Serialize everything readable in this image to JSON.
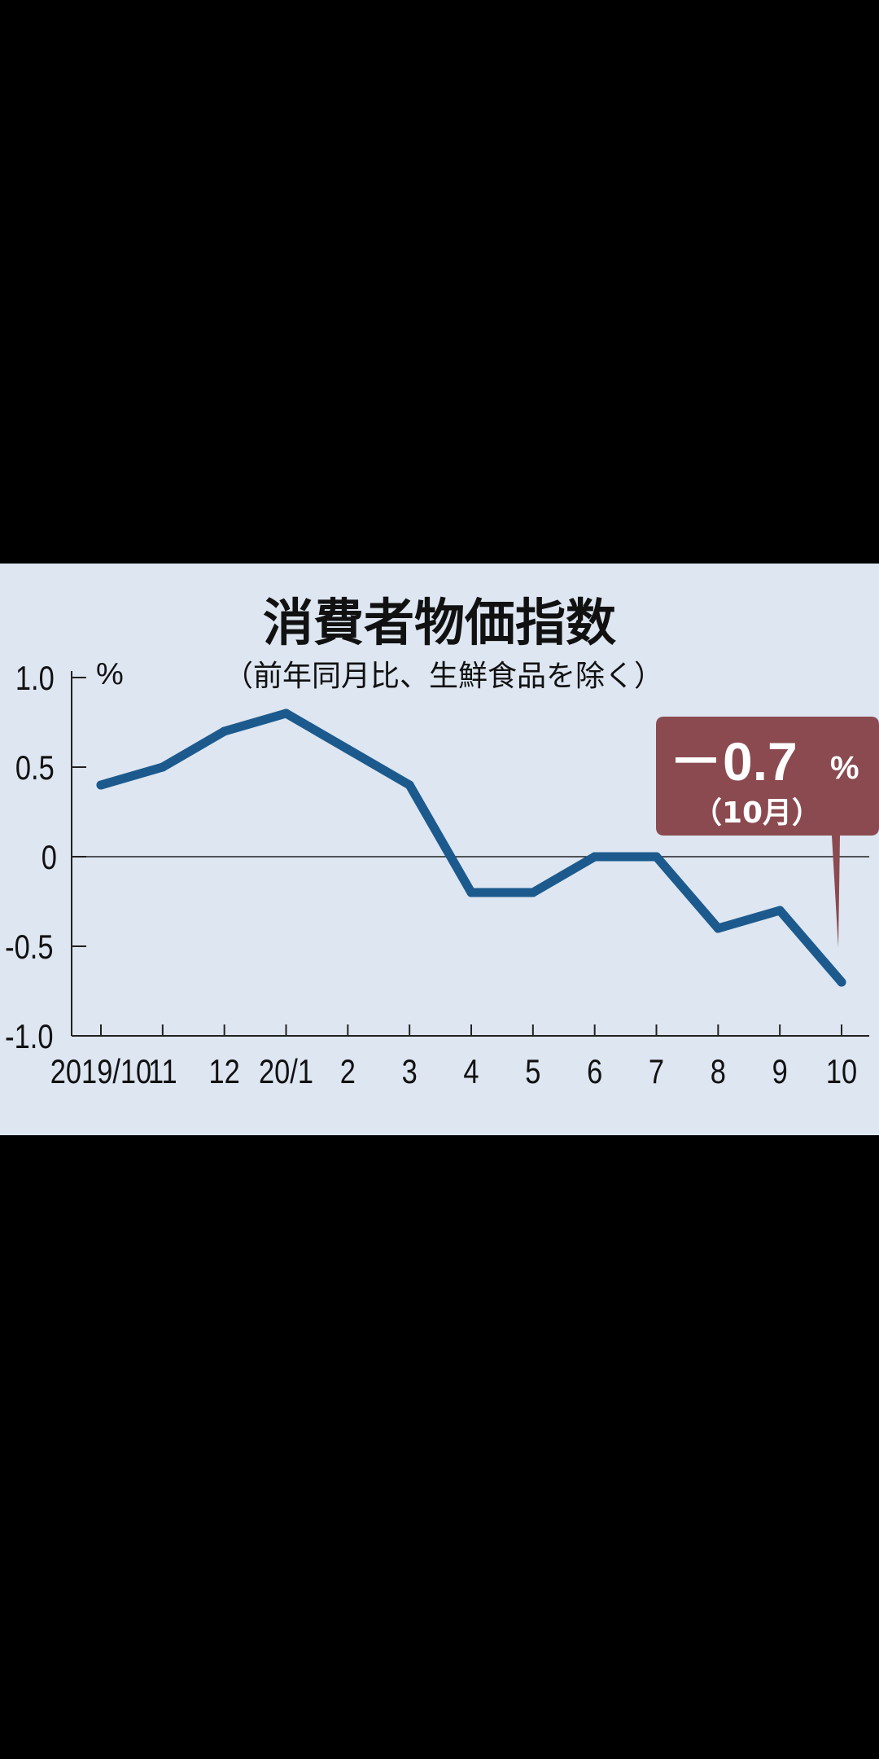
{
  "chart_data": {
    "type": "line",
    "title": "消費者物価指数",
    "subtitle": "（前年同月比、生鮮食品を除く）",
    "ylabel": "%",
    "categories": [
      "2019/10",
      "11",
      "12",
      "20/1",
      "2",
      "3",
      "4",
      "5",
      "6",
      "7",
      "8",
      "9",
      "10"
    ],
    "values": [
      0.4,
      0.5,
      0.7,
      0.8,
      0.6,
      0.4,
      -0.2,
      -0.2,
      0.0,
      0.0,
      -0.4,
      -0.3,
      -0.7
    ],
    "ylim": [
      -1.0,
      1.0
    ],
    "yticks": [
      "1.0",
      "0.5",
      "0",
      "-0.5",
      "-1.0"
    ],
    "ytick_values": [
      1.0,
      0.5,
      0.0,
      -0.5,
      -1.0
    ],
    "grid": false,
    "line_color": "#1c5a8e",
    "annotation": {
      "value": "－0.7",
      "unit": "%",
      "sublabel": "（10月）",
      "color": "#8a4a50"
    }
  }
}
